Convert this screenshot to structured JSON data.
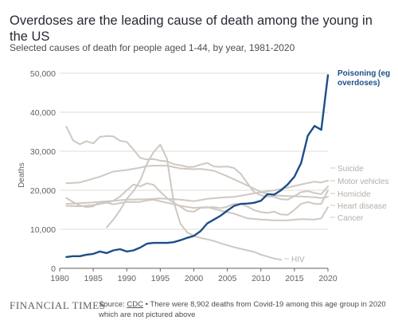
{
  "header": {
    "title": "Overdoses are the leading cause of death among the young in the US",
    "subtitle": "Selected causes of death for people aged 1-44, by year, 1981-2020"
  },
  "footer": {
    "brand": "FINANCIAL TIMES",
    "source_prefix": "Source: ",
    "source_link": "CDC",
    "source_note": " • There were 8,902 deaths from Covid-19 among this age group in 2020 which are not pictured above"
  },
  "colors": {
    "highlight": "#1d4e89",
    "muted": "#cfc8c2",
    "muted_label": "#b5aea8",
    "grid": "#e0dbd6",
    "axis_text": "#66605c",
    "accent_bar": "#ffffff"
  },
  "chart_data": {
    "type": "line",
    "ylabel": "Deaths",
    "xlabel": "",
    "xlim": [
      1980,
      2020
    ],
    "ylim": [
      0,
      50000
    ],
    "x_ticks": [
      "1980",
      "1985",
      "1990",
      "1995",
      "2000",
      "2005",
      "2010",
      "2015",
      "2020"
    ],
    "y_ticks": [
      "0",
      "10,000",
      "20,000",
      "30,000",
      "40,000",
      "50,000"
    ],
    "grid": true,
    "series": [
      {
        "name": "Poisoning (eg overdoses)",
        "highlight": true,
        "points": [
          [
            1981,
            2900
          ],
          [
            1982,
            3100
          ],
          [
            1983,
            3100
          ],
          [
            1984,
            3500
          ],
          [
            1985,
            3700
          ],
          [
            1986,
            4300
          ],
          [
            1987,
            3900
          ],
          [
            1988,
            4600
          ],
          [
            1989,
            4900
          ],
          [
            1990,
            4300
          ],
          [
            1991,
            4600
          ],
          [
            1992,
            5300
          ],
          [
            1993,
            6300
          ],
          [
            1994,
            6500
          ],
          [
            1995,
            6500
          ],
          [
            1996,
            6500
          ],
          [
            1997,
            6700
          ],
          [
            1998,
            7200
          ],
          [
            1999,
            7800
          ],
          [
            2000,
            8300
          ],
          [
            2001,
            9500
          ],
          [
            2002,
            11500
          ],
          [
            2003,
            12500
          ],
          [
            2004,
            13500
          ],
          [
            2005,
            14800
          ],
          [
            2006,
            16000
          ],
          [
            2007,
            16500
          ],
          [
            2008,
            16600
          ],
          [
            2009,
            16800
          ],
          [
            2010,
            17300
          ],
          [
            2011,
            19000
          ],
          [
            2012,
            18900
          ],
          [
            2013,
            20000
          ],
          [
            2014,
            21500
          ],
          [
            2015,
            23500
          ],
          [
            2016,
            27000
          ],
          [
            2017,
            34000
          ],
          [
            2018,
            36500
          ],
          [
            2019,
            35500
          ],
          [
            2020,
            49500
          ]
        ]
      },
      {
        "name": "Suicide",
        "points": [
          [
            1981,
            16500
          ],
          [
            1983,
            16700
          ],
          [
            1985,
            16900
          ],
          [
            1988,
            17300
          ],
          [
            1990,
            17600
          ],
          [
            1993,
            17700
          ],
          [
            1995,
            17900
          ],
          [
            1998,
            17600
          ],
          [
            2000,
            17200
          ],
          [
            2002,
            17800
          ],
          [
            2004,
            18100
          ],
          [
            2006,
            18300
          ],
          [
            2008,
            18900
          ],
          [
            2010,
            19500
          ],
          [
            2012,
            20000
          ],
          [
            2014,
            20700
          ],
          [
            2016,
            21500
          ],
          [
            2018,
            22200
          ],
          [
            2019,
            22000
          ],
          [
            2020,
            22500
          ]
        ]
      },
      {
        "name": "Motor vehicles",
        "points": [
          [
            1981,
            36300
          ],
          [
            1982,
            32800
          ],
          [
            1983,
            31800
          ],
          [
            1984,
            32600
          ],
          [
            1985,
            32000
          ],
          [
            1986,
            33700
          ],
          [
            1987,
            33900
          ],
          [
            1988,
            33800
          ],
          [
            1989,
            32700
          ],
          [
            1990,
            32400
          ],
          [
            1991,
            30400
          ],
          [
            1992,
            28300
          ],
          [
            1993,
            27900
          ],
          [
            1994,
            28000
          ],
          [
            1995,
            27600
          ],
          [
            1996,
            27400
          ],
          [
            1997,
            26700
          ],
          [
            1998,
            26400
          ],
          [
            1999,
            26000
          ],
          [
            2000,
            26000
          ],
          [
            2001,
            26600
          ],
          [
            2002,
            27000
          ],
          [
            2003,
            26100
          ],
          [
            2004,
            26000
          ],
          [
            2005,
            26100
          ],
          [
            2006,
            25700
          ],
          [
            2007,
            24200
          ],
          [
            2008,
            21800
          ],
          [
            2009,
            19500
          ],
          [
            2010,
            18700
          ],
          [
            2011,
            18400
          ],
          [
            2012,
            18300
          ],
          [
            2013,
            17700
          ],
          [
            2014,
            17600
          ],
          [
            2015,
            18500
          ],
          [
            2016,
            19500
          ],
          [
            2017,
            19800
          ],
          [
            2018,
            19300
          ],
          [
            2019,
            19000
          ],
          [
            2020,
            21000
          ]
        ]
      },
      {
        "name": "Homicide",
        "points": [
          [
            1981,
            18000
          ],
          [
            1982,
            17000
          ],
          [
            1983,
            16100
          ],
          [
            1984,
            15700
          ],
          [
            1985,
            15900
          ],
          [
            1986,
            17000
          ],
          [
            1987,
            16800
          ],
          [
            1988,
            17300
          ],
          [
            1989,
            18400
          ],
          [
            1990,
            20000
          ],
          [
            1991,
            21500
          ],
          [
            1992,
            21000
          ],
          [
            1993,
            21800
          ],
          [
            1994,
            21400
          ],
          [
            1995,
            19600
          ],
          [
            1996,
            18000
          ],
          [
            1997,
            16800
          ],
          [
            1998,
            15800
          ],
          [
            1999,
            14700
          ],
          [
            2000,
            14500
          ],
          [
            2001,
            15500
          ],
          [
            2002,
            15600
          ],
          [
            2003,
            15700
          ],
          [
            2004,
            15400
          ],
          [
            2005,
            15800
          ],
          [
            2006,
            16500
          ],
          [
            2007,
            16500
          ],
          [
            2008,
            15800
          ],
          [
            2009,
            14900
          ],
          [
            2010,
            14400
          ],
          [
            2011,
            14200
          ],
          [
            2012,
            14500
          ],
          [
            2013,
            13800
          ],
          [
            2014,
            13700
          ],
          [
            2015,
            15000
          ],
          [
            2016,
            16500
          ],
          [
            2017,
            17000
          ],
          [
            2018,
            16500
          ],
          [
            2019,
            16500
          ],
          [
            2020,
            20000
          ]
        ]
      },
      {
        "name": "Heart disease",
        "points": [
          [
            1981,
            21800
          ],
          [
            1983,
            22000
          ],
          [
            1984,
            22500
          ],
          [
            1986,
            23500
          ],
          [
            1988,
            24800
          ],
          [
            1990,
            25200
          ],
          [
            1992,
            25800
          ],
          [
            1993,
            26200
          ],
          [
            1994,
            26300
          ],
          [
            1996,
            26300
          ],
          [
            1998,
            25600
          ],
          [
            2000,
            25400
          ],
          [
            2001,
            25500
          ],
          [
            2003,
            25000
          ],
          [
            2005,
            23600
          ],
          [
            2007,
            22000
          ],
          [
            2009,
            20400
          ],
          [
            2010,
            19500
          ],
          [
            2012,
            18700
          ],
          [
            2014,
            18500
          ],
          [
            2016,
            18400
          ],
          [
            2018,
            18200
          ],
          [
            2019,
            18000
          ],
          [
            2020,
            18300
          ]
        ]
      },
      {
        "name": "Cancer",
        "points": [
          [
            1981,
            16000
          ],
          [
            1983,
            15900
          ],
          [
            1985,
            16200
          ],
          [
            1987,
            16800
          ],
          [
            1988,
            16400
          ],
          [
            1990,
            17000
          ],
          [
            1992,
            17000
          ],
          [
            1993,
            17400
          ],
          [
            1994,
            17600
          ],
          [
            1996,
            16800
          ],
          [
            1998,
            16000
          ],
          [
            2000,
            15500
          ],
          [
            2002,
            15700
          ],
          [
            2004,
            14800
          ],
          [
            2006,
            14000
          ],
          [
            2008,
            12800
          ],
          [
            2010,
            12500
          ],
          [
            2012,
            12300
          ],
          [
            2014,
            12300
          ],
          [
            2016,
            12600
          ],
          [
            2018,
            12500
          ],
          [
            2019,
            12800
          ],
          [
            2020,
            15700
          ]
        ]
      },
      {
        "name": "HIV",
        "points": [
          [
            1987,
            10500
          ],
          [
            1988,
            12500
          ],
          [
            1989,
            14900
          ],
          [
            1990,
            17800
          ],
          [
            1991,
            19800
          ],
          [
            1992,
            22500
          ],
          [
            1993,
            26800
          ],
          [
            1994,
            29800
          ],
          [
            1995,
            31700
          ],
          [
            1996,
            28000
          ],
          [
            1997,
            17000
          ],
          [
            1998,
            11400
          ],
          [
            1999,
            9200
          ],
          [
            2000,
            8300
          ],
          [
            2001,
            7800
          ],
          [
            2002,
            7400
          ],
          [
            2003,
            7000
          ],
          [
            2004,
            6400
          ],
          [
            2005,
            5900
          ],
          [
            2006,
            5400
          ],
          [
            2007,
            5000
          ],
          [
            2008,
            4600
          ],
          [
            2009,
            4200
          ],
          [
            2010,
            3500
          ],
          [
            2011,
            3000
          ],
          [
            2012,
            2500
          ],
          [
            2013,
            2200
          ]
        ]
      }
    ],
    "legend_labels": [
      {
        "text": "Poisoning (eg",
        "series": 0
      },
      {
        "text": "overdoses)",
        "series": 0
      },
      {
        "text": "Suicide",
        "series": 1
      },
      {
        "text": "Motor vehicles",
        "series": 2
      },
      {
        "text": "Homicide",
        "series": 3
      },
      {
        "text": "Heart disease",
        "series": 4
      },
      {
        "text": "Cancer",
        "series": 5
      },
      {
        "text": "HIV",
        "series": 6
      }
    ]
  }
}
